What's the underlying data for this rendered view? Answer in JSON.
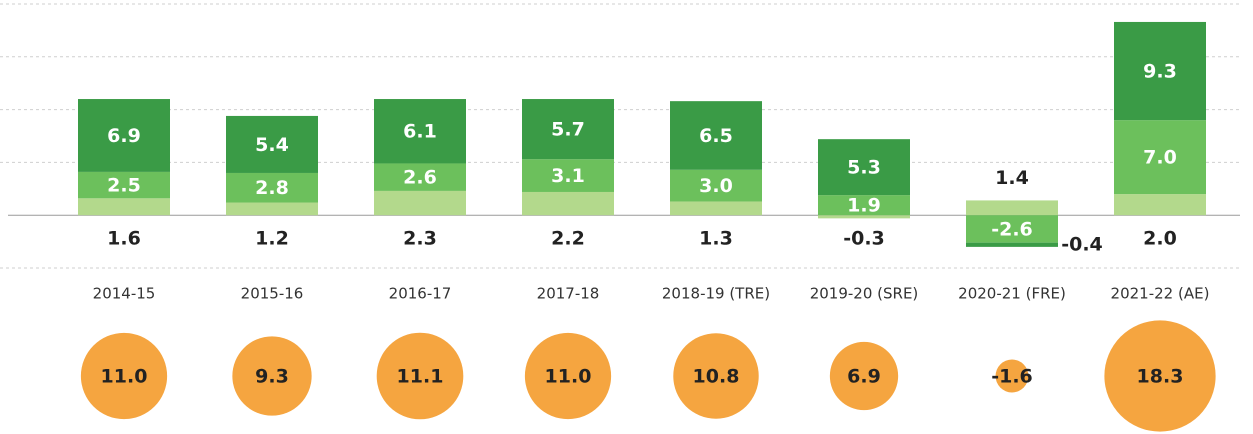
{
  "chart_data": {
    "type": "bar",
    "stacked": true,
    "categories": [
      "2014-15",
      "2015-16",
      "2016-17",
      "2017-18",
      "2018-19 (TRE)",
      "2019-20 (SRE)",
      "2020-21 (FRE)",
      "2021-22 (AE)"
    ],
    "series": [
      {
        "color": "#b3d98c",
        "values": [
          1.6,
          1.2,
          2.3,
          2.2,
          1.3,
          -0.3,
          1.4,
          2.0
        ],
        "value_labels": [
          "1.6",
          "1.2",
          "2.3",
          "2.2",
          "1.3",
          "-0.3",
          "1.4",
          "2.0"
        ]
      },
      {
        "color": "#6cc05c",
        "values": [
          2.5,
          2.8,
          2.6,
          3.1,
          3.0,
          1.9,
          -2.6,
          7.0
        ],
        "value_labels": [
          "2.5",
          "2.8",
          "2.6",
          "3.1",
          "3.0",
          "1.9",
          "-2.6",
          "7.0"
        ]
      },
      {
        "color": "#3a9b46",
        "values": [
          6.9,
          5.4,
          6.1,
          5.7,
          6.5,
          5.3,
          -0.4,
          9.3
        ],
        "value_labels": [
          "6.9",
          "5.4",
          "6.1",
          "5.7",
          "6.5",
          "5.3",
          "-0.4",
          "9.3"
        ]
      }
    ],
    "totals": {
      "type": "bubble",
      "color": "#f5a540",
      "values": [
        11.0,
        9.3,
        11.1,
        11.0,
        10.8,
        6.9,
        -1.6,
        18.3
      ],
      "value_labels": [
        "11.0",
        "9.3",
        "11.1",
        "11.0",
        "10.8",
        "6.9",
        "-1.6",
        "18.3"
      ]
    },
    "ylim": [
      -5,
      20
    ],
    "yticks": [
      -5,
      0,
      5,
      10,
      15,
      20
    ],
    "grid": true
  }
}
